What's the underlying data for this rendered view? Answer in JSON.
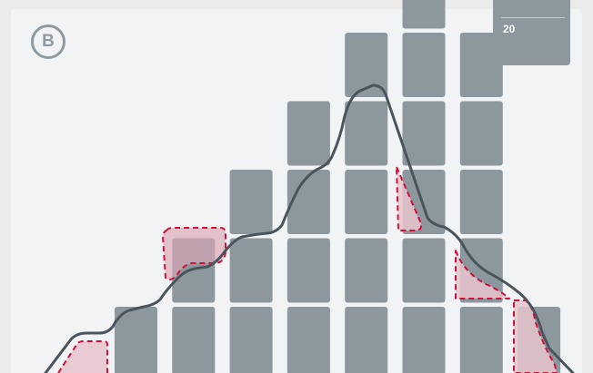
{
  "badge": {
    "label": "B"
  },
  "counter": {
    "value": "20"
  },
  "columns": [
    1,
    2,
    3,
    4,
    5,
    6,
    5,
    1
  ],
  "colors": {
    "panel": "#f2f3f4",
    "block": "#8c979e",
    "outline": "#4a545c",
    "highlight": "#e8c4cc",
    "dash": "#d0103a",
    "badge": "#8e99a1"
  }
}
